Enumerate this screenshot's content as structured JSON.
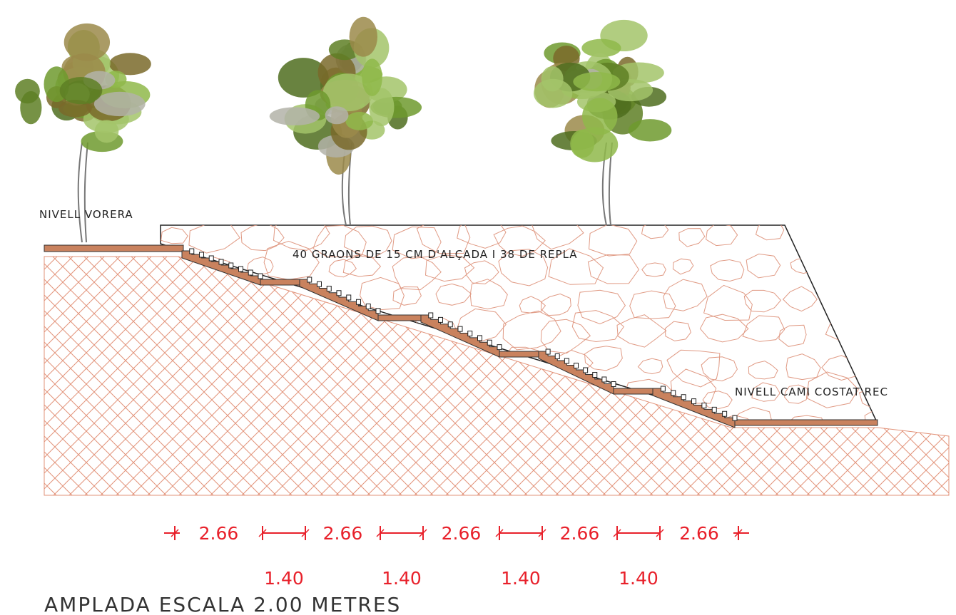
{
  "labels": {
    "sidewalk_level": "NIVELL VORERA",
    "steps_note": "40 GRAONS DE 15 CM D'ALÇADA I 38 DE REPLA",
    "path_level": "NIVELL CAMI COSTAT REC"
  },
  "dimensions": {
    "flights": [
      "2.66",
      "2.66",
      "2.66",
      "2.66",
      "2.66"
    ],
    "landings": [
      "1.40",
      "1.40",
      "1.40",
      "1.40"
    ]
  },
  "footer": "AMPLADA ESCALA 2.00 METRES"
}
